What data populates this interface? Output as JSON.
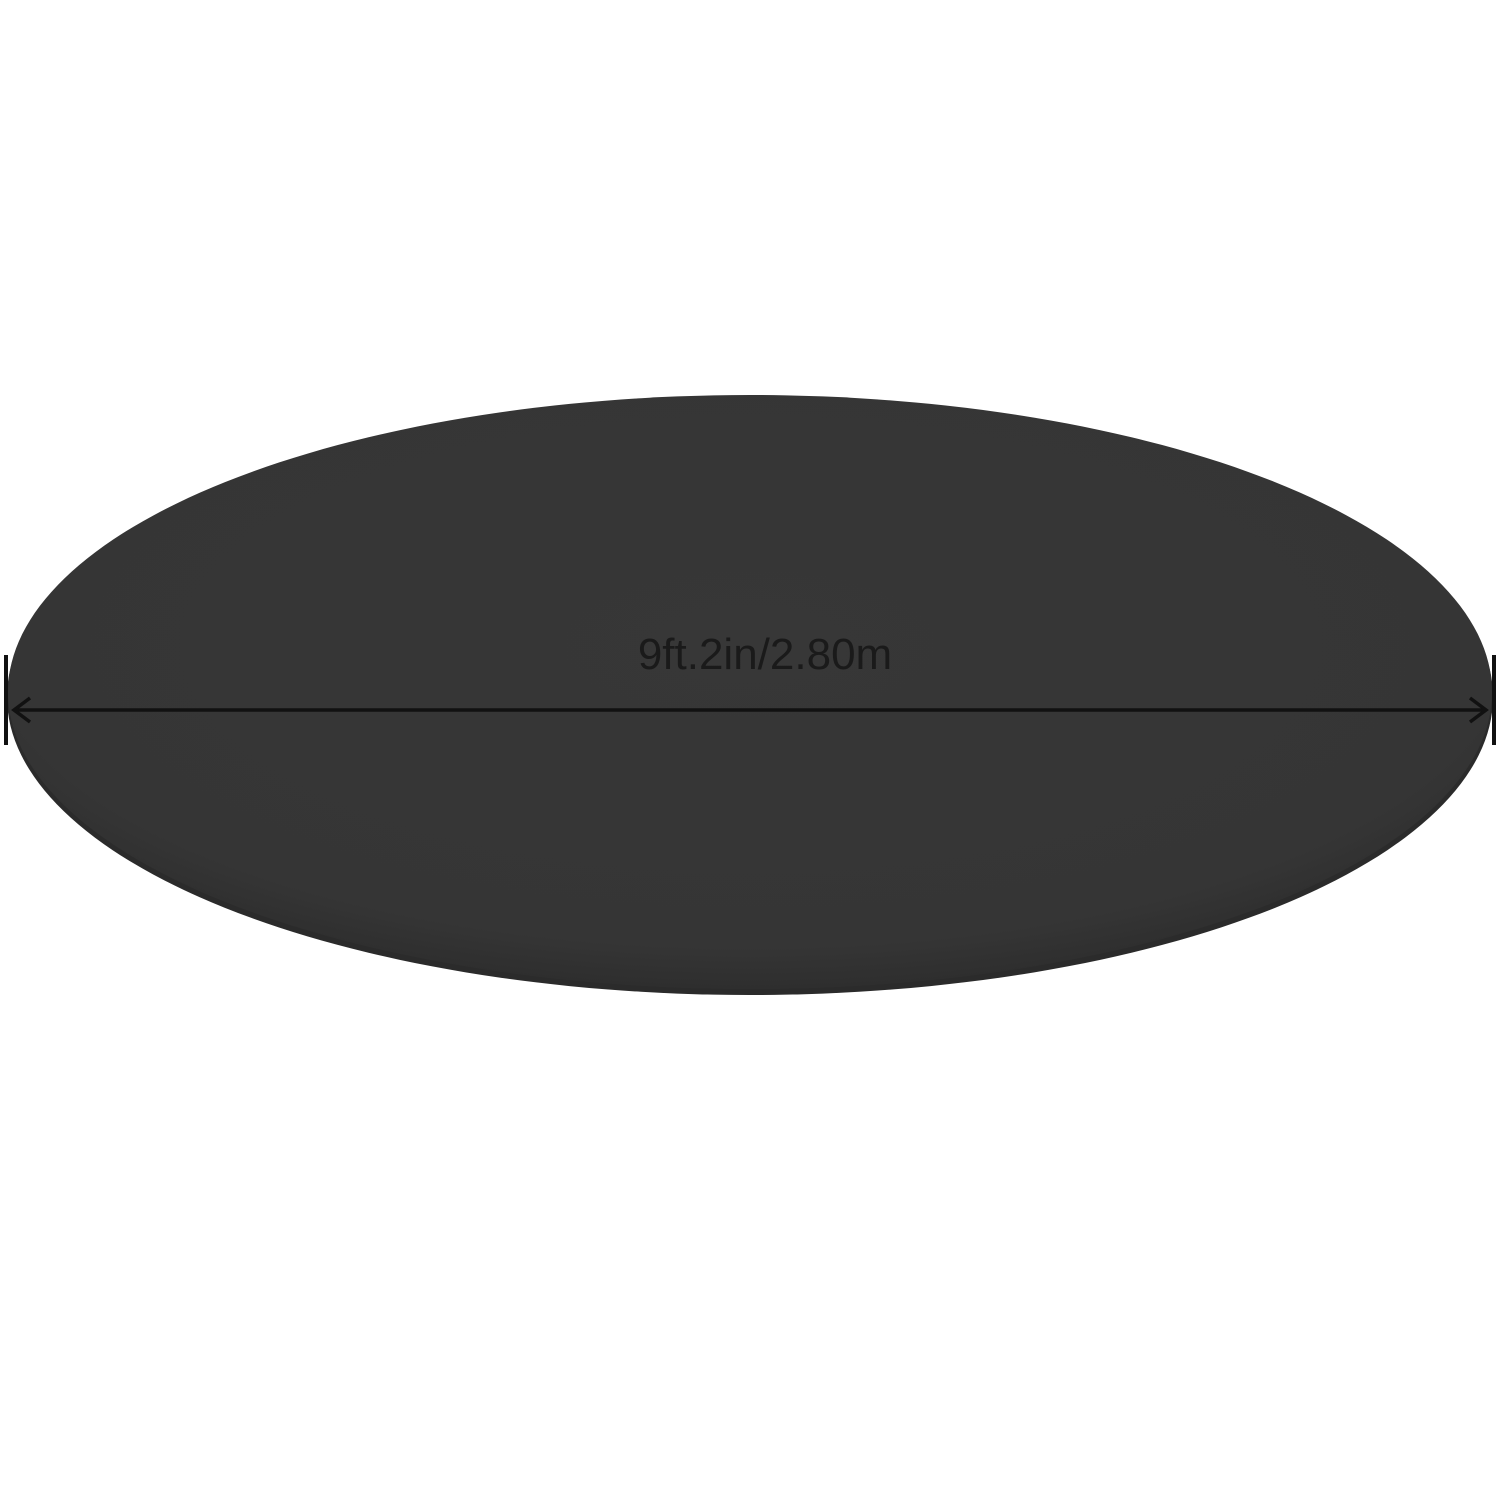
{
  "product": {
    "shape": "round pool cover",
    "color": "#353535",
    "edge_shadow_color": "#2a2a2a"
  },
  "dimension": {
    "label": "9ft.2in/2.80m",
    "line_color": "#111111",
    "arrow_style": "double-headed with end ticks"
  },
  "background_color": "#ffffff"
}
